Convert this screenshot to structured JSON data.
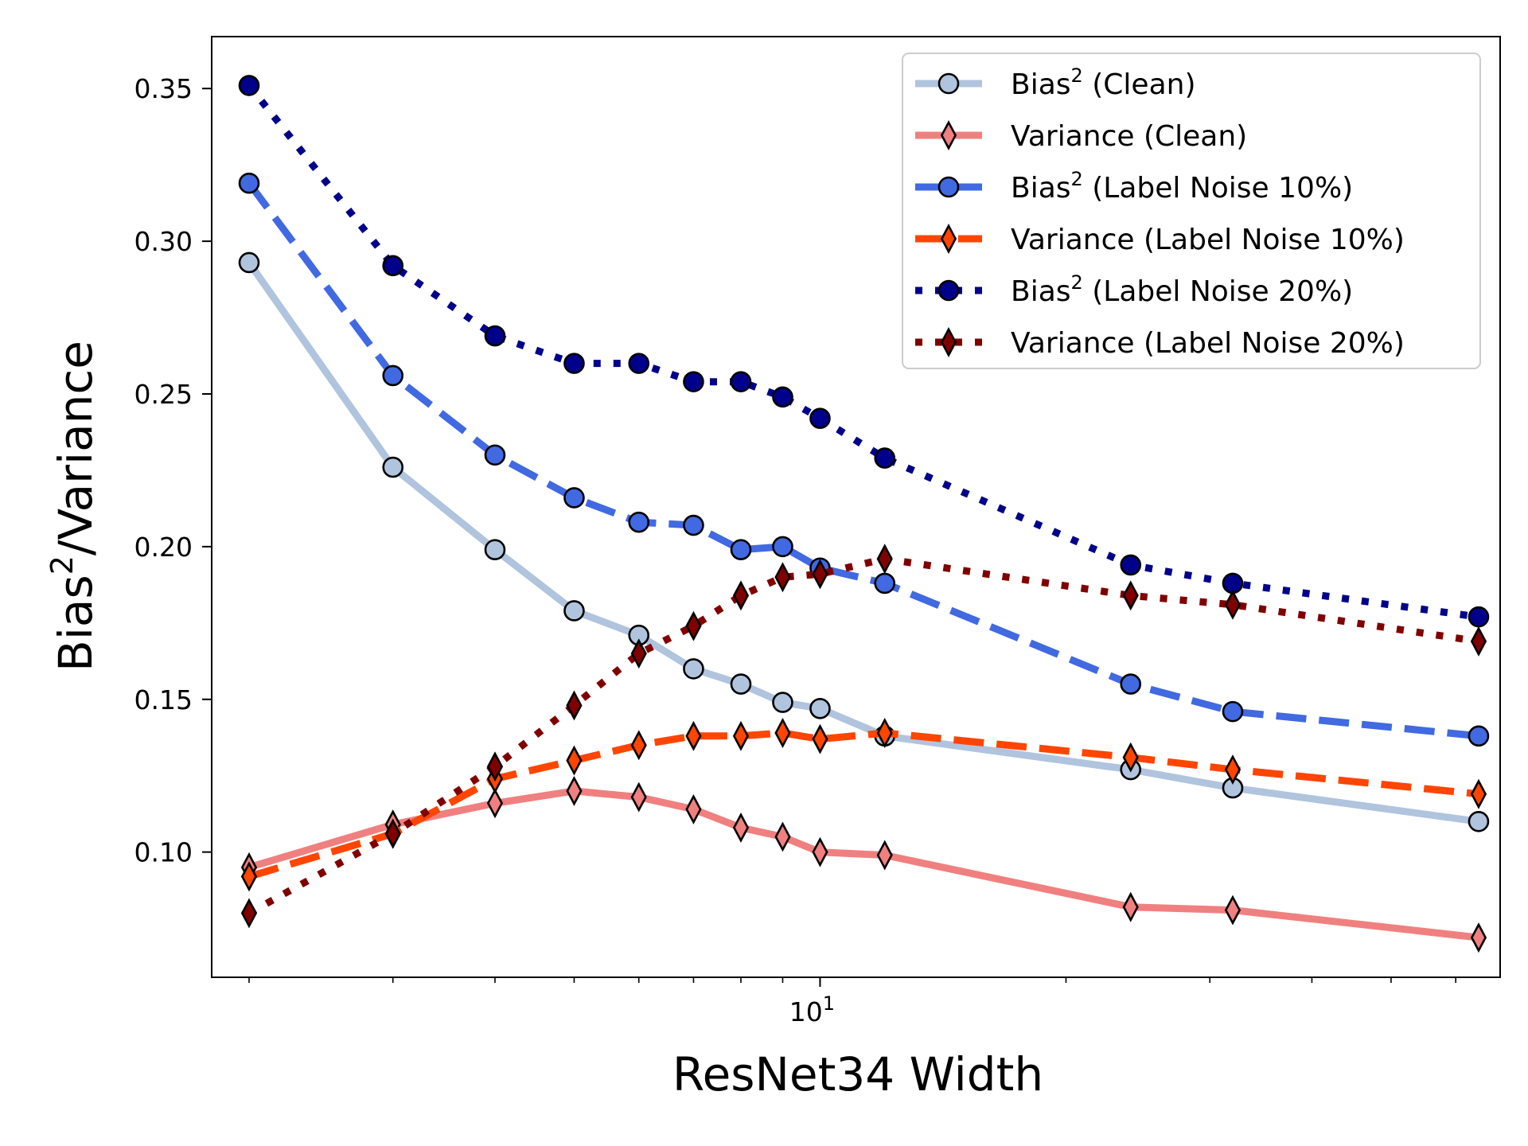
{
  "chart_data": {
    "type": "line",
    "title": "",
    "xlabel": "ResNet34 Width",
    "ylabel_parts": [
      "Bias",
      "2",
      "/Variance"
    ],
    "xscale": "log",
    "xlim": [
      1.8,
      68
    ],
    "ylim": [
      0.059,
      0.367
    ],
    "x_ticks": [
      {
        "value": 10,
        "base": "10",
        "exp": "1"
      }
    ],
    "x_minor_ticks": [
      2,
      3,
      4,
      5,
      6,
      7,
      8,
      9,
      20,
      30,
      40,
      50,
      60
    ],
    "y_ticks": [
      {
        "value": 0.1,
        "label": "0.10"
      },
      {
        "value": 0.15,
        "label": "0.15"
      },
      {
        "value": 0.2,
        "label": "0.20"
      },
      {
        "value": 0.25,
        "label": "0.25"
      },
      {
        "value": 0.3,
        "label": "0.30"
      },
      {
        "value": 0.35,
        "label": "0.35"
      }
    ],
    "grid": false,
    "legend_position": "upper right",
    "x": [
      2,
      3,
      4,
      5,
      6,
      7,
      8,
      9,
      10,
      12,
      24,
      32,
      64
    ],
    "series": [
      {
        "name": "Bias² (Clean)",
        "label_parts": [
          "Bias",
          "2",
          " (Clean)"
        ],
        "color": "#b0c4de",
        "marker": "circle",
        "dash": "solid",
        "values": [
          0.293,
          0.226,
          0.199,
          0.179,
          0.171,
          0.16,
          0.155,
          0.149,
          0.147,
          0.138,
          0.127,
          0.121,
          0.11
        ]
      },
      {
        "name": "Variance (Clean)",
        "label_parts": [
          "Variance (Clean)",
          "",
          ""
        ],
        "color": "#f08080",
        "marker": "diamond",
        "dash": "solid",
        "values": [
          0.095,
          0.109,
          0.116,
          0.12,
          0.118,
          0.114,
          0.108,
          0.105,
          0.1,
          0.099,
          0.082,
          0.081,
          0.072
        ]
      },
      {
        "name": "Bias² (Label Noise 10%)",
        "label_parts": [
          "Bias",
          "2",
          " (Label Noise 10%)"
        ],
        "color": "#4169e1",
        "marker": "circle",
        "dash": "dashed",
        "values": [
          0.319,
          0.256,
          0.23,
          0.216,
          0.208,
          0.207,
          0.199,
          0.2,
          0.193,
          0.188,
          0.155,
          0.146,
          0.138
        ]
      },
      {
        "name": "Variance (Label Noise 10%)",
        "label_parts": [
          "Variance (Label Noise 10%)",
          "",
          ""
        ],
        "color": "#ff4500",
        "marker": "diamond",
        "dash": "dashed",
        "values": [
          0.092,
          0.106,
          0.124,
          0.13,
          0.135,
          0.138,
          0.138,
          0.139,
          0.137,
          0.139,
          0.131,
          0.127,
          0.119
        ]
      },
      {
        "name": "Bias² (Label Noise 20%)",
        "label_parts": [
          "Bias",
          "2",
          " (Label Noise 20%)"
        ],
        "color": "#00008b",
        "marker": "circle",
        "dash": "dotted",
        "values": [
          0.351,
          0.292,
          0.269,
          0.26,
          0.26,
          0.254,
          0.254,
          0.249,
          0.242,
          0.229,
          0.194,
          0.188,
          0.177
        ]
      },
      {
        "name": "Variance (Label Noise 20%)",
        "label_parts": [
          "Variance (Label Noise 20%)",
          "",
          ""
        ],
        "color": "#800000",
        "marker": "diamond",
        "dash": "dotted",
        "values": [
          0.08,
          0.106,
          0.128,
          0.148,
          0.165,
          0.174,
          0.184,
          0.19,
          0.191,
          0.196,
          0.184,
          0.181,
          0.169
        ]
      }
    ]
  }
}
